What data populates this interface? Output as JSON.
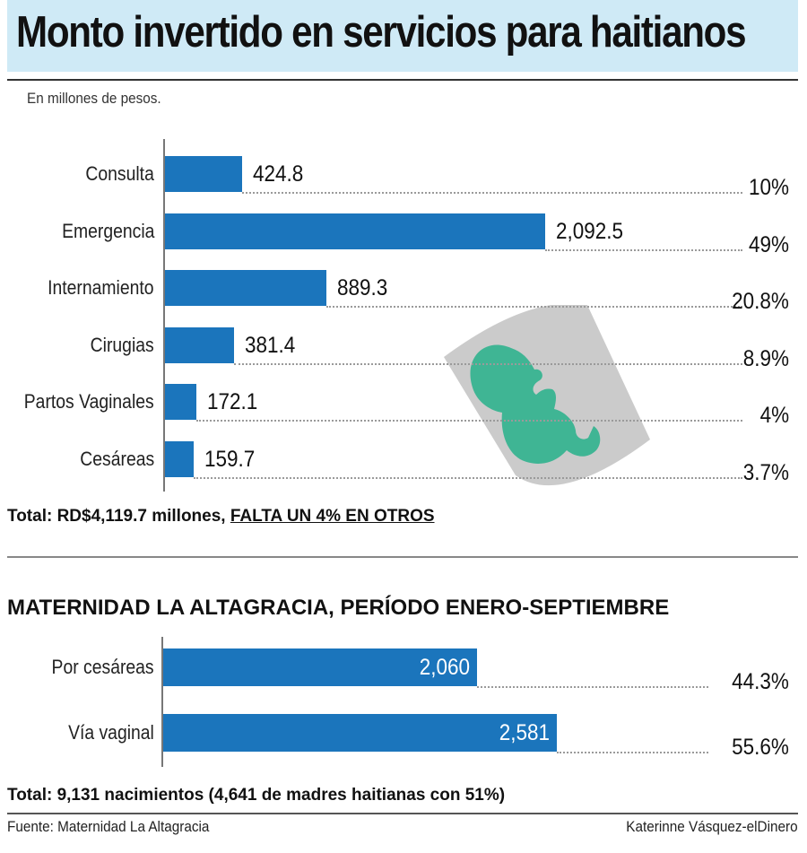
{
  "title": "Monto invertido en servicios para haitianos",
  "subtitle": "En millones de pesos.",
  "chart_data": [
    {
      "type": "bar",
      "orientation": "horizontal",
      "title": "Monto invertido en servicios para haitianos",
      "unit": "En millones de pesos.",
      "categories": [
        "Consulta",
        "Emergencia",
        "Internamiento",
        "Cirugias",
        "Partos Vaginales",
        "Cesáreas"
      ],
      "values": [
        424.8,
        2092.5,
        889.3,
        381.4,
        172.1,
        159.7
      ],
      "value_labels": [
        "424.8",
        "2,092.5",
        "889.3",
        "381.4",
        "172.1",
        "159.7"
      ],
      "percent_labels": [
        "10%",
        "49%",
        "20.8%",
        "8.9%",
        "4%",
        "3.7%"
      ],
      "xlim": [
        0,
        3340
      ]
    },
    {
      "type": "bar",
      "orientation": "horizontal",
      "title": "MATERNIDAD LA ALTAGRACIA, PERÍODO ENERO-SEPTIEMBRE",
      "categories": [
        "Por cesáreas",
        "Vía vaginal"
      ],
      "values": [
        2060,
        2581
      ],
      "value_labels": [
        "2,060",
        "2,581"
      ],
      "percent_labels": [
        "44.3%",
        "55.6%"
      ],
      "xlim": [
        0,
        4070
      ]
    }
  ],
  "total1": {
    "main": "Total: RD$4,119.7 millones, ",
    "emph": "FALTA UN 4% EN OTROS"
  },
  "section2_title": "MATERNIDAD LA ALTAGRACIA, PERÍODO ENERO-SEPTIEMBRE",
  "total2": "Total: 9,131 nacimientos (4,641 de madres haitianas con 51%)",
  "footer": {
    "source": "Fuente: Maternidad La Altagracia",
    "credit": "Katerinne Vásquez-elDinero"
  },
  "colors": {
    "bar": "#1b75bc",
    "title_band": "#cfeaf6",
    "illustration_gray": "#cbcbcb",
    "illustration_teal": "#3fb594"
  },
  "icons": {
    "illustration": "fetus-ultrasound-icon"
  }
}
